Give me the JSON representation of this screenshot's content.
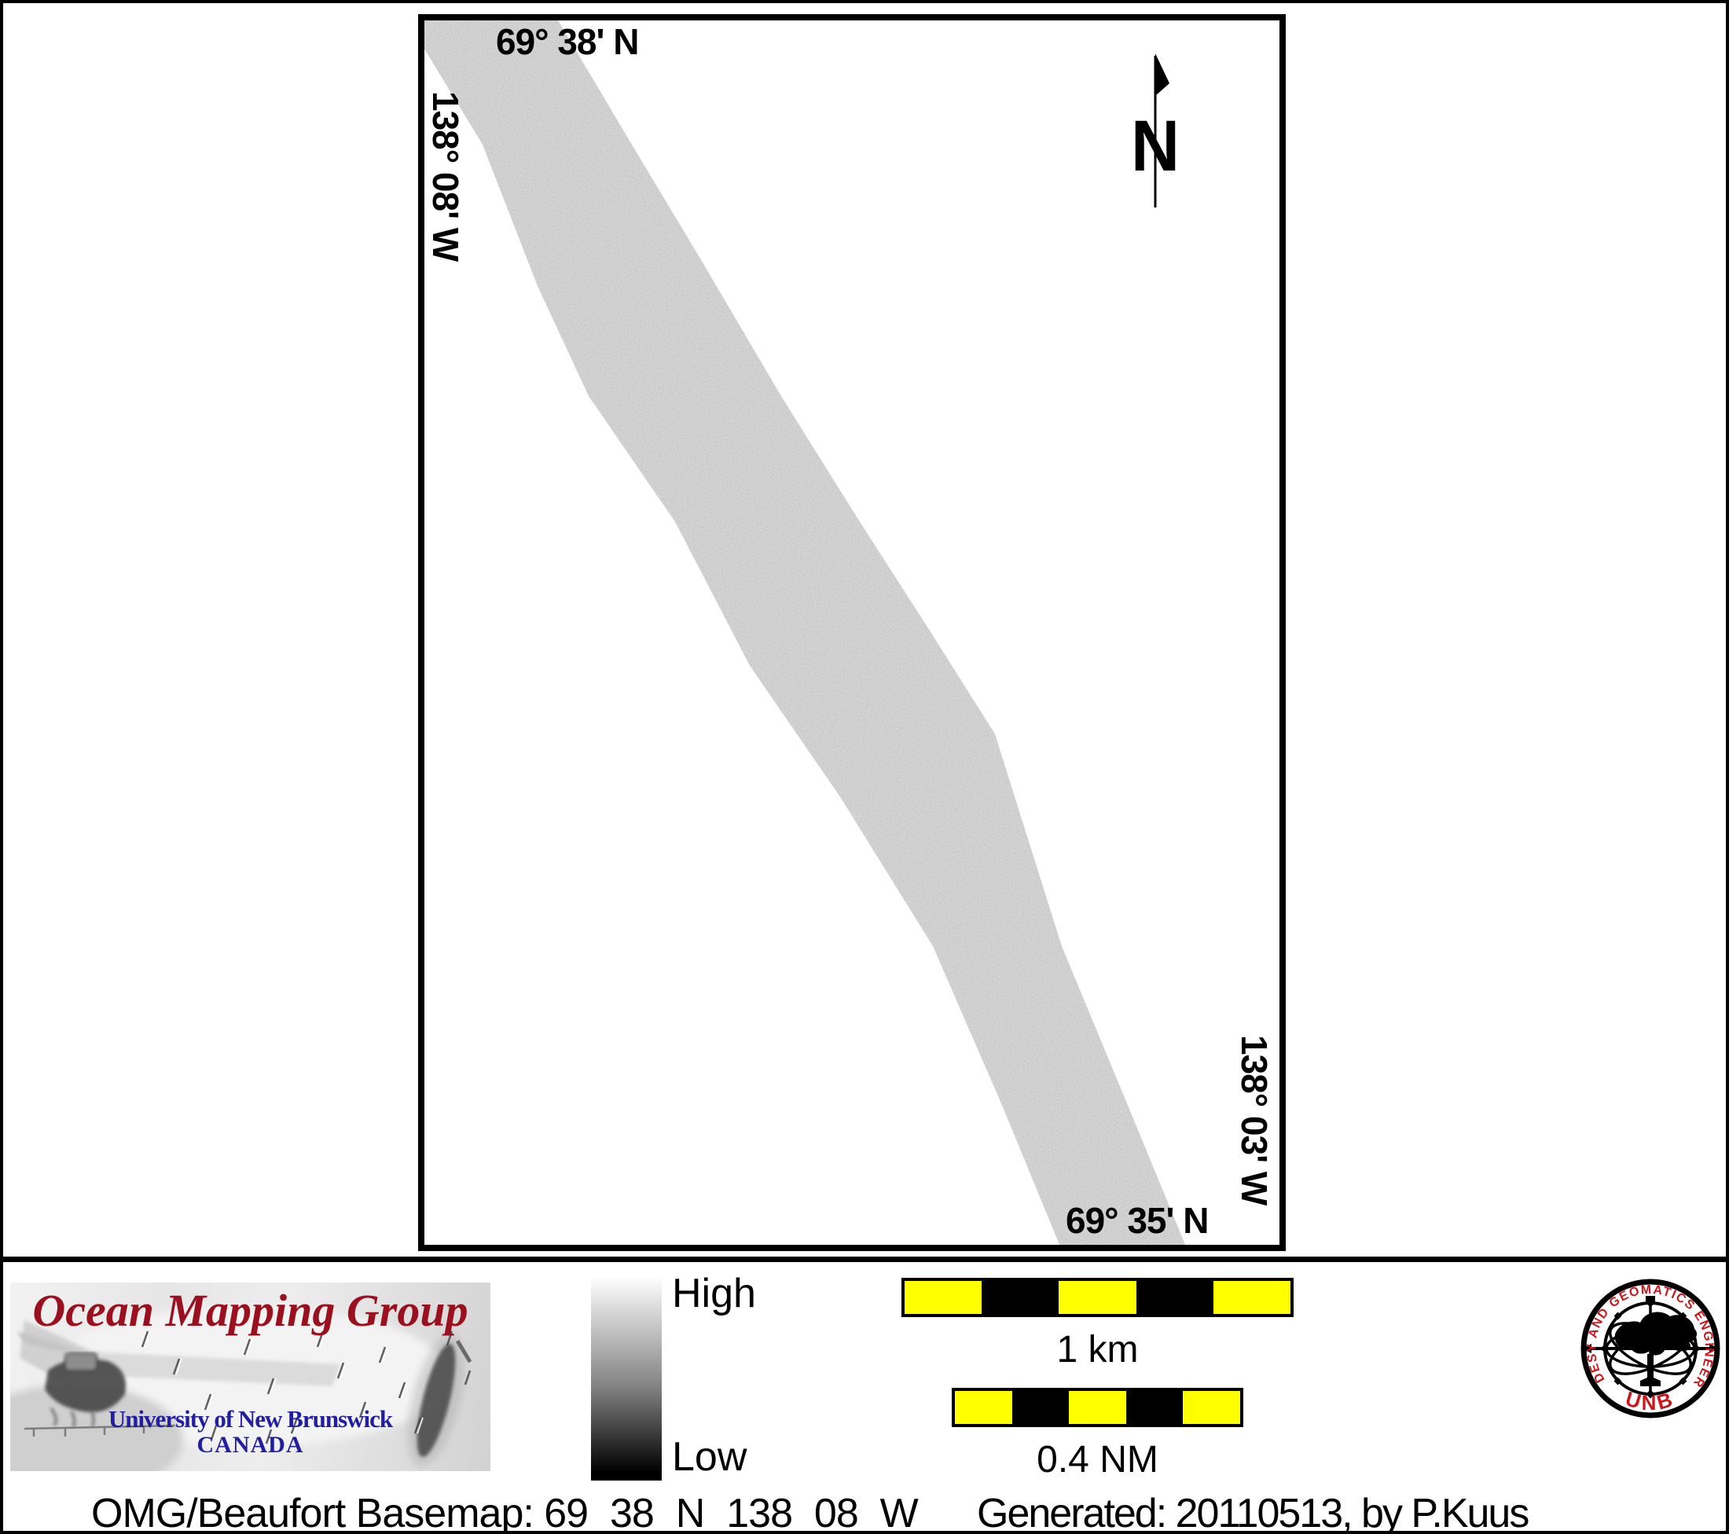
{
  "map": {
    "top_label": "69° 38' N",
    "left_label": "138° 08' W",
    "right_label": "138° 03' W",
    "bottom_label": "69° 35' N",
    "north_label": "N"
  },
  "legend": {
    "high": "High",
    "low": "Low",
    "gradient_top": "#ffffff",
    "gradient_bottom": "#000000"
  },
  "scale_bars": {
    "km": {
      "label": "1 km",
      "segments": 5
    },
    "nm": {
      "label": "0.4 NM",
      "segments": 5
    }
  },
  "colors": {
    "scalebar_yellow": "#ffff00",
    "scalebar_black": "#000000",
    "omg_title_red": "#9b101e",
    "unb_text_blue": "#221f9e",
    "seal_red": "#c9171e",
    "swath_gray": "#a0a0a0"
  },
  "omg_logo": {
    "title": "Ocean Mapping Group",
    "university": "University of New Brunswick",
    "country": "CANADA"
  },
  "unb_seal": {
    "ring_text": "GEODESY AND GEOMATICS ENGINEERING",
    "acronym": "UNB"
  },
  "footer": {
    "basemap": "OMG/Beaufort Basemap: 69_38_N_138_08_W",
    "generated": "Generated: 20110513, by P.Kuus"
  }
}
